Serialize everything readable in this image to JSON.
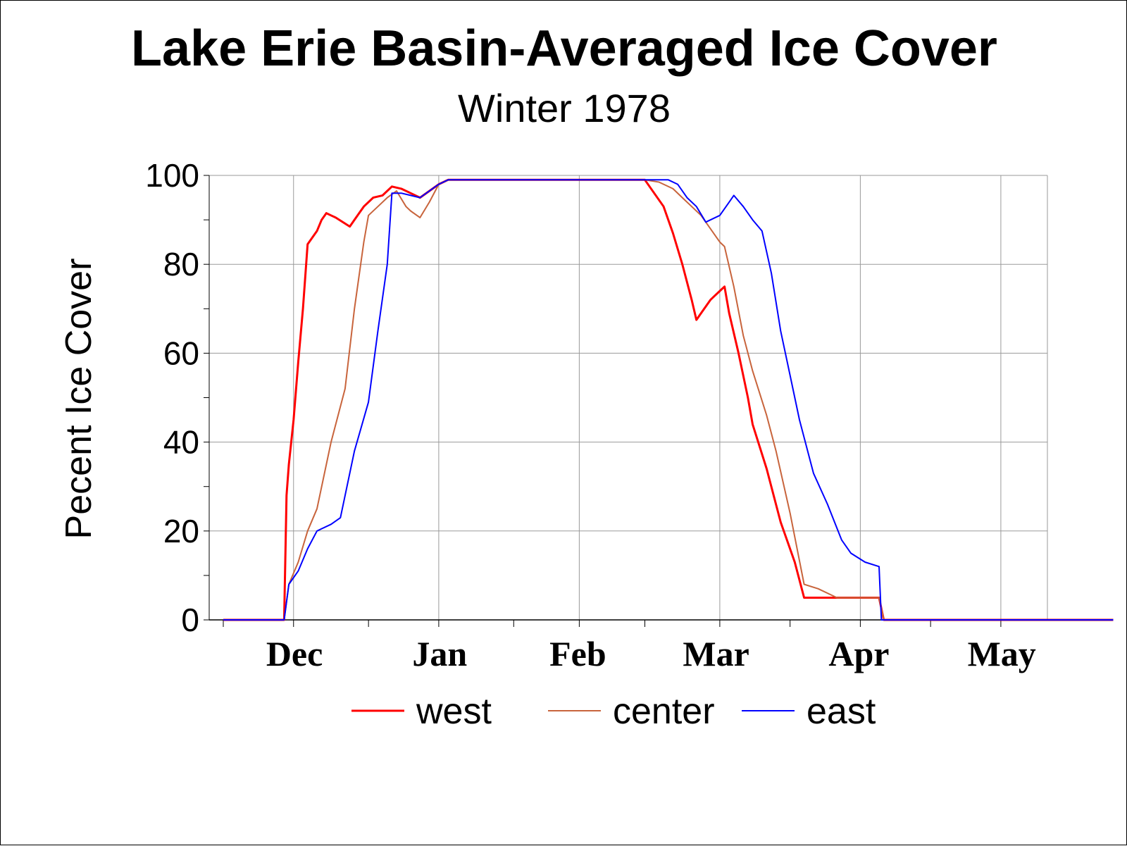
{
  "chart_data": {
    "type": "line",
    "title": "Lake Erie Basin-Averaged Ice Cover",
    "subtitle": "Winter 1978",
    "ylabel": "Pecent Ice Cover",
    "xlabel": "",
    "ylim": [
      0,
      100
    ],
    "yticks": [
      "0",
      "20",
      "40",
      "60",
      "80",
      "100"
    ],
    "month_labels": [
      "Dec",
      "Jan",
      "Feb",
      "Mar",
      "Apr",
      "May"
    ],
    "x_units": "days since Dec 1",
    "grid": true,
    "legend_position": "bottom",
    "series": [
      {
        "name": "west",
        "color": "#ff0000",
        "width": 3,
        "points": [
          [
            0,
            0
          ],
          [
            13,
            0
          ],
          [
            13.5,
            28
          ],
          [
            14,
            35
          ],
          [
            15,
            45
          ],
          [
            16,
            58
          ],
          [
            17,
            70
          ],
          [
            18,
            84.5
          ],
          [
            20,
            87.5
          ],
          [
            21,
            90
          ],
          [
            22,
            91.5
          ],
          [
            23,
            91
          ],
          [
            24,
            90.5
          ],
          [
            27,
            88.5
          ],
          [
            28,
            90
          ],
          [
            30,
            93
          ],
          [
            32,
            95
          ],
          [
            34,
            95.5
          ],
          [
            36,
            97.5
          ],
          [
            38,
            97
          ],
          [
            40,
            96
          ],
          [
            42,
            95
          ],
          [
            44,
            96.5
          ],
          [
            46,
            98
          ],
          [
            48,
            99
          ],
          [
            50,
            99
          ],
          [
            60,
            99
          ],
          [
            70,
            99
          ],
          [
            80,
            99
          ],
          [
            90,
            99
          ],
          [
            94,
            93
          ],
          [
            96,
            87
          ],
          [
            98,
            80
          ],
          [
            100,
            72
          ],
          [
            101,
            67.5
          ],
          [
            102,
            69
          ],
          [
            104,
            72
          ],
          [
            106,
            74
          ],
          [
            107,
            75
          ],
          [
            108,
            69
          ],
          [
            110,
            60
          ],
          [
            112,
            50
          ],
          [
            113,
            44
          ],
          [
            116,
            34
          ],
          [
            119,
            22
          ],
          [
            122,
            13
          ],
          [
            124,
            5
          ],
          [
            127,
            5
          ],
          [
            130,
            5
          ],
          [
            135,
            5
          ],
          [
            140,
            5
          ],
          [
            141,
            0
          ],
          [
            190,
            0
          ]
        ]
      },
      {
        "name": "center",
        "color": "#c8643c",
        "width": 2,
        "points": [
          [
            0,
            0
          ],
          [
            13,
            0
          ],
          [
            14,
            8
          ],
          [
            16,
            13
          ],
          [
            18,
            20
          ],
          [
            20,
            25
          ],
          [
            23,
            40
          ],
          [
            26,
            52
          ],
          [
            28,
            70
          ],
          [
            30,
            85
          ],
          [
            31,
            91
          ],
          [
            33,
            93
          ],
          [
            35,
            95
          ],
          [
            37,
            96.5
          ],
          [
            39,
            93
          ],
          [
            40,
            92
          ],
          [
            42,
            90.5
          ],
          [
            44,
            94
          ],
          [
            46,
            98
          ],
          [
            48,
            99
          ],
          [
            50,
            99
          ],
          [
            60,
            99
          ],
          [
            70,
            99
          ],
          [
            80,
            99
          ],
          [
            90,
            99
          ],
          [
            93,
            98.5
          ],
          [
            96,
            97
          ],
          [
            98,
            95
          ],
          [
            100,
            93
          ],
          [
            102,
            91
          ],
          [
            104,
            88
          ],
          [
            106,
            85
          ],
          [
            107,
            84
          ],
          [
            109,
            75
          ],
          [
            111,
            64
          ],
          [
            113,
            56
          ],
          [
            116,
            46
          ],
          [
            118,
            38
          ],
          [
            121,
            24
          ],
          [
            124,
            8
          ],
          [
            127,
            7
          ],
          [
            131,
            5
          ],
          [
            135,
            5
          ],
          [
            140,
            5
          ],
          [
            141,
            0
          ],
          [
            190,
            0
          ]
        ]
      },
      {
        "name": "east",
        "color": "#0000ff",
        "width": 2,
        "points": [
          [
            0,
            0
          ],
          [
            13,
            0
          ],
          [
            14,
            8
          ],
          [
            16,
            11
          ],
          [
            18,
            16
          ],
          [
            20,
            20
          ],
          [
            21,
            20.5
          ],
          [
            23,
            21.5
          ],
          [
            25,
            23
          ],
          [
            28,
            38
          ],
          [
            31,
            49
          ],
          [
            33,
            65
          ],
          [
            35,
            80
          ],
          [
            36,
            96
          ],
          [
            38,
            96
          ],
          [
            40,
            95.5
          ],
          [
            42,
            95
          ],
          [
            44,
            96.5
          ],
          [
            46,
            98
          ],
          [
            48,
            99
          ],
          [
            50,
            99
          ],
          [
            60,
            99
          ],
          [
            70,
            99
          ],
          [
            80,
            99
          ],
          [
            90,
            99
          ],
          [
            95,
            99
          ],
          [
            97,
            98
          ],
          [
            99,
            95
          ],
          [
            101,
            93
          ],
          [
            103,
            89.5
          ],
          [
            106,
            91
          ],
          [
            108,
            94
          ],
          [
            109,
            95.5
          ],
          [
            111,
            93
          ],
          [
            113,
            90
          ],
          [
            115,
            87.5
          ],
          [
            117,
            78
          ],
          [
            119,
            65
          ],
          [
            121,
            55
          ],
          [
            123,
            45
          ],
          [
            126,
            33
          ],
          [
            129,
            26
          ],
          [
            132,
            18
          ],
          [
            134,
            15
          ],
          [
            137,
            13
          ],
          [
            140,
            12
          ],
          [
            140.5,
            0
          ],
          [
            190,
            0
          ]
        ]
      }
    ]
  }
}
